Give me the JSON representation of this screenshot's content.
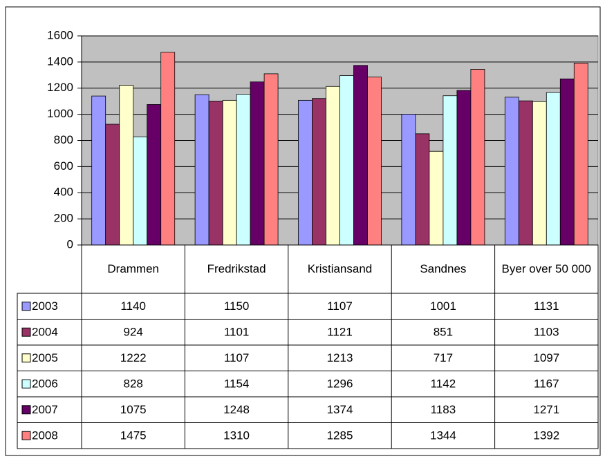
{
  "chart_data": {
    "type": "bar",
    "categories": [
      "Drammen",
      "Fredrikstad",
      "Kristiansand",
      "Sandnes",
      "Byer over 50 000"
    ],
    "series": [
      {
        "name": "2003",
        "color": "#9999ff",
        "values": [
          1140,
          1150,
          1107,
          1001,
          1131
        ]
      },
      {
        "name": "2004",
        "color": "#993366",
        "values": [
          924,
          1101,
          1121,
          851,
          1103
        ]
      },
      {
        "name": "2005",
        "color": "#ffffcc",
        "values": [
          1222,
          1107,
          1213,
          717,
          1097
        ]
      },
      {
        "name": "2006",
        "color": "#ccffff",
        "values": [
          828,
          1154,
          1296,
          1142,
          1167
        ]
      },
      {
        "name": "2007",
        "color": "#660066",
        "values": [
          1075,
          1248,
          1374,
          1183,
          1271
        ]
      },
      {
        "name": "2008",
        "color": "#ff8080",
        "values": [
          1475,
          1310,
          1285,
          1344,
          1392
        ]
      }
    ],
    "ylim": [
      0,
      1600
    ],
    "yticks": [
      0,
      200,
      400,
      600,
      800,
      1000,
      1200,
      1400,
      1600
    ],
    "grid": true,
    "plot_background": "#c0c0c0",
    "data_table": true
  }
}
